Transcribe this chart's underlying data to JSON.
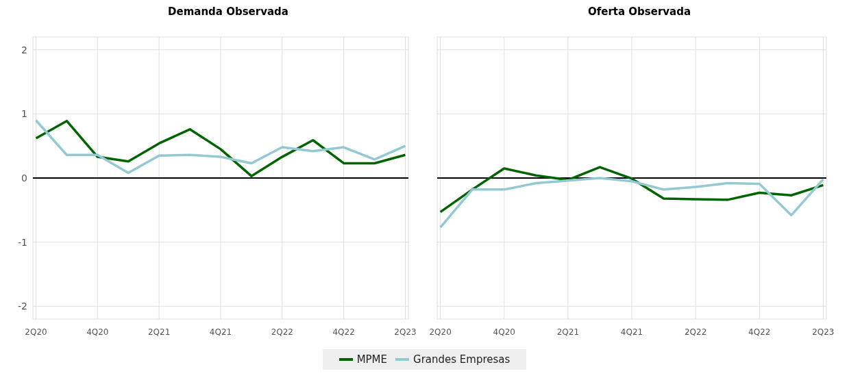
{
  "chart_data": [
    {
      "type": "line",
      "title": "Demanda Observada",
      "categories": [
        "2Q20",
        null,
        "4Q20",
        null,
        "2Q21",
        null,
        "4Q21",
        null,
        "2Q22",
        null,
        "4Q22",
        null,
        "2Q23"
      ],
      "series": [
        {
          "name": "MPME",
          "color": "#006400",
          "values": [
            0.62,
            0.89,
            0.33,
            0.26,
            0.54,
            0.76,
            0.45,
            0.03,
            0.33,
            0.59,
            0.23,
            0.23,
            0.36
          ]
        },
        {
          "name": "Grandes Empresas",
          "color": "#92c9d2",
          "values": [
            0.9,
            0.36,
            0.36,
            0.08,
            0.35,
            0.36,
            0.33,
            0.23,
            0.48,
            0.42,
            0.48,
            0.29,
            0.5
          ]
        }
      ],
      "ylim": [
        -2.2,
        2.2
      ],
      "yticks": [
        -2,
        -1,
        0,
        1,
        2
      ],
      "grid": true,
      "legend": "bottom",
      "marker": "none",
      "ref_lines": [
        {
          "axis": "y",
          "value": 0,
          "color": "#000000"
        }
      ]
    },
    {
      "type": "line",
      "title": "Oferta Observada",
      "categories": [
        "2Q20",
        null,
        "4Q20",
        null,
        "2Q21",
        null,
        "4Q21",
        null,
        "2Q22",
        null,
        "4Q22",
        null,
        "2Q23"
      ],
      "series": [
        {
          "name": "MPME",
          "color": "#006400",
          "values": [
            -0.53,
            -0.18,
            0.15,
            0.04,
            -0.03,
            0.17,
            -0.01,
            -0.32,
            -0.33,
            -0.34,
            -0.23,
            -0.27,
            -0.11
          ]
        },
        {
          "name": "Grandes Empresas",
          "color": "#92c9d2",
          "values": [
            -0.77,
            -0.18,
            -0.18,
            -0.08,
            -0.04,
            0,
            -0.05,
            -0.18,
            -0.14,
            -0.08,
            -0.09,
            -0.58,
            -0.02
          ]
        }
      ],
      "ylim": [
        -2.2,
        2.2
      ],
      "yticks": [
        -2,
        -1,
        0,
        1,
        2
      ],
      "grid": true,
      "tick_labels": "x",
      "marker": "none",
      "ref_lines": [
        {
          "axis": "y",
          "value": 0,
          "color": "#000000"
        }
      ]
    }
  ]
}
